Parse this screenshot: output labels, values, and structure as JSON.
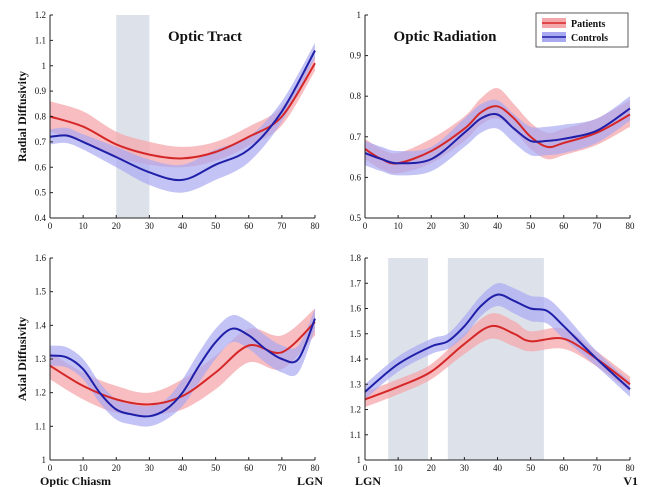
{
  "colors": {
    "patients": "#d62728",
    "patients_band": "#f4a7ab",
    "controls": "#1f1fa8",
    "controls_band": "#a9a9f2",
    "highlight": "#dde1ea"
  },
  "legend": {
    "patients": "Patients",
    "controls": "Controls"
  },
  "end_labels": {
    "tl_left": "",
    "tl_right": "",
    "bl_left": "Optic Chiasm",
    "bl_right": "LGN",
    "br_left": "LGN",
    "br_right": "V1"
  },
  "chart_data": [
    {
      "id": "tl",
      "type": "line",
      "title": "Optic Tract",
      "ylabel": "Radial Diffusivity",
      "xlabel": "",
      "xlim": [
        0,
        80
      ],
      "ylim": [
        0.4,
        1.2
      ],
      "xticks": [
        0,
        10,
        20,
        30,
        40,
        50,
        60,
        70,
        80
      ],
      "yticks": [
        0.4,
        0.5,
        0.6,
        0.7,
        0.8,
        0.9,
        1.0,
        1.1,
        1.2
      ],
      "ytick_labels": [
        "0.4",
        "0.5",
        "0.6",
        "0.7",
        "0.8",
        "0.9",
        "1",
        "1.1",
        "1.2"
      ],
      "highlight": [
        [
          20,
          30
        ]
      ],
      "legend": false,
      "series": [
        {
          "name": "Patients",
          "x": [
            0,
            10,
            20,
            30,
            40,
            50,
            60,
            70,
            80
          ],
          "y": [
            0.8,
            0.76,
            0.69,
            0.65,
            0.635,
            0.66,
            0.72,
            0.8,
            1.01
          ],
          "lower": [
            0.74,
            0.7,
            0.64,
            0.61,
            0.6,
            0.625,
            0.685,
            0.765,
            0.98
          ],
          "upper": [
            0.86,
            0.82,
            0.74,
            0.7,
            0.68,
            0.7,
            0.76,
            0.84,
            1.04
          ]
        },
        {
          "name": "Controls",
          "x": [
            0,
            5,
            10,
            20,
            30,
            40,
            50,
            60,
            70,
            80
          ],
          "y": [
            0.72,
            0.725,
            0.7,
            0.64,
            0.58,
            0.55,
            0.61,
            0.67,
            0.82,
            1.06
          ],
          "lower": [
            0.69,
            0.695,
            0.67,
            0.6,
            0.53,
            0.5,
            0.55,
            0.62,
            0.78,
            1.03
          ],
          "upper": [
            0.75,
            0.755,
            0.73,
            0.68,
            0.63,
            0.61,
            0.67,
            0.72,
            0.86,
            1.09
          ]
        }
      ]
    },
    {
      "id": "tr",
      "type": "line",
      "title": "Optic Radiation",
      "ylabel": "",
      "xlabel": "",
      "xlim": [
        0,
        80
      ],
      "ylim": [
        0.5,
        1.0
      ],
      "xticks": [
        0,
        10,
        20,
        30,
        40,
        50,
        60,
        70,
        80
      ],
      "yticks": [
        0.5,
        0.6,
        0.7,
        0.8,
        0.9,
        1.0
      ],
      "ytick_labels": [
        "0.5",
        "0.6",
        "0.7",
        "0.8",
        "0.9",
        "1"
      ],
      "highlight": [],
      "legend": true,
      "series": [
        {
          "name": "Patients",
          "x": [
            0,
            5,
            10,
            20,
            30,
            35,
            40,
            45,
            50,
            55,
            60,
            70,
            80
          ],
          "y": [
            0.67,
            0.645,
            0.635,
            0.665,
            0.72,
            0.76,
            0.775,
            0.745,
            0.7,
            0.675,
            0.685,
            0.71,
            0.755
          ],
          "lower": [
            0.645,
            0.62,
            0.61,
            0.635,
            0.69,
            0.73,
            0.745,
            0.715,
            0.67,
            0.645,
            0.655,
            0.68,
            0.725
          ],
          "upper": [
            0.695,
            0.67,
            0.66,
            0.695,
            0.75,
            0.795,
            0.82,
            0.78,
            0.735,
            0.71,
            0.72,
            0.745,
            0.79
          ]
        },
        {
          "name": "Controls",
          "x": [
            0,
            5,
            10,
            20,
            30,
            35,
            40,
            45,
            50,
            55,
            60,
            70,
            80
          ],
          "y": [
            0.66,
            0.645,
            0.635,
            0.645,
            0.71,
            0.745,
            0.755,
            0.72,
            0.69,
            0.69,
            0.695,
            0.715,
            0.77
          ],
          "lower": [
            0.63,
            0.615,
            0.605,
            0.615,
            0.675,
            0.71,
            0.72,
            0.685,
            0.655,
            0.655,
            0.66,
            0.685,
            0.74
          ],
          "upper": [
            0.69,
            0.675,
            0.665,
            0.675,
            0.745,
            0.78,
            0.79,
            0.755,
            0.725,
            0.725,
            0.73,
            0.745,
            0.8
          ]
        }
      ]
    },
    {
      "id": "bl",
      "type": "line",
      "title": "",
      "ylabel": "Axial Diffusivity",
      "xlabel": "",
      "xlim": [
        0,
        80
      ],
      "ylim": [
        1.0,
        1.6
      ],
      "xticks": [
        0,
        10,
        20,
        30,
        40,
        50,
        60,
        70,
        80
      ],
      "yticks": [
        1.0,
        1.1,
        1.2,
        1.3,
        1.4,
        1.5,
        1.6
      ],
      "ytick_labels": [
        "1",
        "1.1",
        "1.2",
        "1.3",
        "1.4",
        "1.5",
        "1.6"
      ],
      "highlight": [],
      "legend": false,
      "series": [
        {
          "name": "Patients",
          "x": [
            0,
            10,
            20,
            30,
            40,
            50,
            60,
            70,
            80
          ],
          "y": [
            1.28,
            1.22,
            1.18,
            1.165,
            1.19,
            1.26,
            1.34,
            1.32,
            1.41
          ],
          "lower": [
            1.24,
            1.18,
            1.14,
            1.135,
            1.15,
            1.21,
            1.29,
            1.27,
            1.37
          ],
          "upper": [
            1.32,
            1.26,
            1.22,
            1.2,
            1.24,
            1.31,
            1.39,
            1.37,
            1.45
          ]
        },
        {
          "name": "Controls",
          "x": [
            0,
            5,
            10,
            15,
            20,
            25,
            30,
            35,
            40,
            45,
            50,
            55,
            60,
            65,
            70,
            75,
            80
          ],
          "y": [
            1.31,
            1.305,
            1.27,
            1.2,
            1.15,
            1.135,
            1.13,
            1.15,
            1.2,
            1.28,
            1.35,
            1.39,
            1.37,
            1.33,
            1.3,
            1.3,
            1.42
          ],
          "lower": [
            1.28,
            1.275,
            1.24,
            1.17,
            1.12,
            1.105,
            1.1,
            1.12,
            1.16,
            1.23,
            1.3,
            1.35,
            1.33,
            1.29,
            1.26,
            1.26,
            1.39
          ],
          "upper": [
            1.34,
            1.335,
            1.3,
            1.23,
            1.18,
            1.165,
            1.16,
            1.18,
            1.24,
            1.32,
            1.39,
            1.43,
            1.41,
            1.37,
            1.34,
            1.34,
            1.45
          ]
        }
      ]
    },
    {
      "id": "br",
      "type": "line",
      "title": "",
      "ylabel": "",
      "xlabel": "",
      "xlim": [
        0,
        80
      ],
      "ylim": [
        1.0,
        1.8
      ],
      "xticks": [
        0,
        10,
        20,
        30,
        40,
        50,
        60,
        70,
        80
      ],
      "yticks": [
        1.0,
        1.1,
        1.2,
        1.3,
        1.4,
        1.5,
        1.6,
        1.7,
        1.8
      ],
      "ytick_labels": [
        "1",
        "1.1",
        "1.2",
        "1.3",
        "1.4",
        "1.5",
        "1.6",
        "1.7",
        "1.8"
      ],
      "highlight": [
        [
          7,
          19
        ],
        [
          25,
          54
        ]
      ],
      "legend": false,
      "series": [
        {
          "name": "Patients",
          "x": [
            0,
            10,
            20,
            30,
            38,
            45,
            50,
            60,
            70,
            80
          ],
          "y": [
            1.24,
            1.29,
            1.35,
            1.46,
            1.53,
            1.5,
            1.47,
            1.48,
            1.4,
            1.3
          ],
          "lower": [
            1.21,
            1.26,
            1.32,
            1.42,
            1.48,
            1.45,
            1.43,
            1.44,
            1.37,
            1.27
          ],
          "upper": [
            1.27,
            1.32,
            1.38,
            1.5,
            1.58,
            1.55,
            1.51,
            1.52,
            1.43,
            1.33
          ]
        },
        {
          "name": "Controls",
          "x": [
            0,
            10,
            20,
            25,
            30,
            35,
            40,
            45,
            50,
            55,
            60,
            70,
            80
          ],
          "y": [
            1.27,
            1.38,
            1.45,
            1.47,
            1.53,
            1.61,
            1.655,
            1.63,
            1.6,
            1.59,
            1.53,
            1.4,
            1.28
          ],
          "lower": [
            1.24,
            1.35,
            1.42,
            1.44,
            1.49,
            1.57,
            1.61,
            1.58,
            1.55,
            1.54,
            1.48,
            1.37,
            1.25
          ],
          "upper": [
            1.3,
            1.41,
            1.48,
            1.5,
            1.57,
            1.65,
            1.7,
            1.68,
            1.65,
            1.64,
            1.58,
            1.43,
            1.31
          ]
        }
      ]
    }
  ]
}
